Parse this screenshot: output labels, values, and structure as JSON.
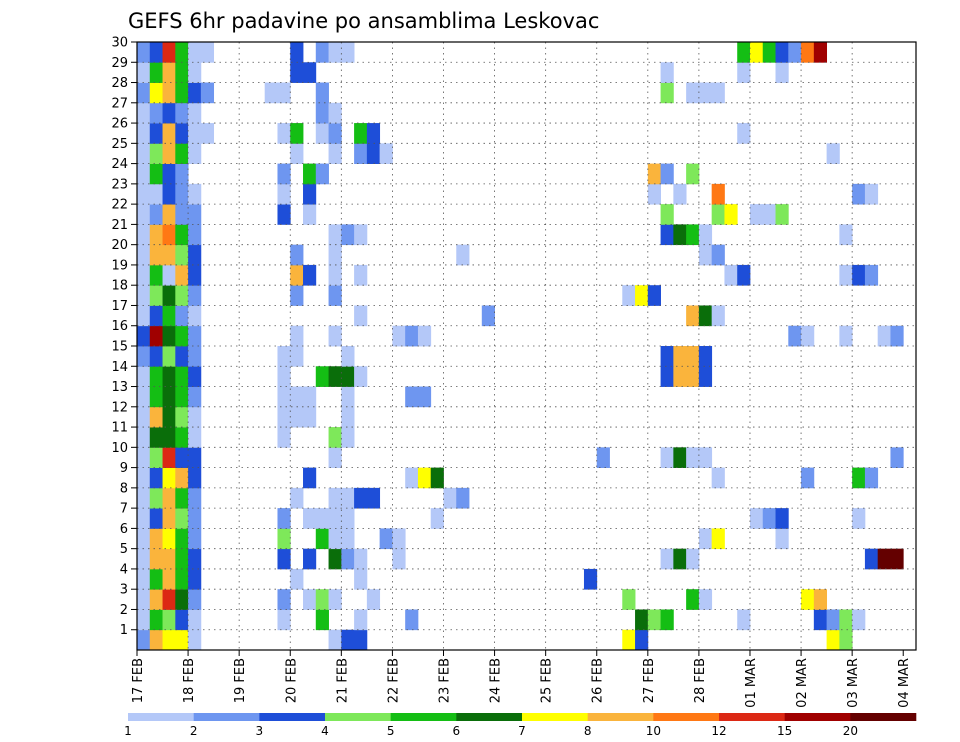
{
  "chart_data": {
    "type": "heatmap",
    "title": "GEFS 6hr padavine po ansamblima Leskovac",
    "xlabel": "",
    "ylabel": "",
    "x_tick_labels": [
      "17 FEB",
      "18 FEB",
      "19 FEB",
      "20 FEB",
      "21 FEB",
      "22 FEB",
      "23 FEB",
      "24 FEB",
      "25 FEB",
      "26 FEB",
      "27 FEB",
      "28 FEB",
      "01 MAR",
      "02 MAR",
      "03 MAR",
      "04 MAR"
    ],
    "y_tick_labels": [
      "1",
      "2",
      "3",
      "4",
      "5",
      "6",
      "7",
      "8",
      "9",
      "10",
      "11",
      "12",
      "13",
      "14",
      "15",
      "16",
      "17",
      "18",
      "19",
      "20",
      "21",
      "22",
      "23",
      "24",
      "25",
      "26",
      "27",
      "28",
      "29",
      "30"
    ],
    "x_step": "6hr",
    "n_columns": 61,
    "ylim": [
      0,
      30
    ],
    "grid": true,
    "colorbar": {
      "levels": [
        "1",
        "2",
        "3",
        "4",
        "5",
        "6",
        "7",
        "8",
        "10",
        "12",
        "15",
        "20"
      ],
      "colors": [
        "#b4c8f8",
        "#6e96f0",
        "#1e4ed8",
        "#7ee85a",
        "#14be14",
        "#0a6e0a",
        "#ffff00",
        "#fab43c",
        "#ff7814",
        "#dc2814",
        "#a00000",
        "#640000"
      ]
    },
    "cells": [
      [
        1,
        1,
        2
      ],
      [
        1,
        2,
        8
      ],
      [
        1,
        3,
        7
      ],
      [
        1,
        4,
        7
      ],
      [
        1,
        5,
        1
      ],
      [
        1,
        16,
        1
      ],
      [
        1,
        17,
        3
      ],
      [
        1,
        18,
        3
      ],
      [
        1,
        39,
        7
      ],
      [
        1,
        40,
        3
      ],
      [
        1,
        55,
        7
      ],
      [
        1,
        56,
        4
      ],
      [
        2,
        1,
        1
      ],
      [
        2,
        2,
        5
      ],
      [
        2,
        3,
        4
      ],
      [
        2,
        4,
        3
      ],
      [
        2,
        5,
        1
      ],
      [
        2,
        12,
        1
      ],
      [
        2,
        15,
        5
      ],
      [
        2,
        18,
        1
      ],
      [
        2,
        22,
        2
      ],
      [
        2,
        40,
        6
      ],
      [
        2,
        41,
        4
      ],
      [
        2,
        42,
        5
      ],
      [
        2,
        48,
        1
      ],
      [
        2,
        54,
        3
      ],
      [
        2,
        55,
        2
      ],
      [
        2,
        56,
        4
      ],
      [
        2,
        57,
        1
      ],
      [
        3,
        1,
        1
      ],
      [
        3,
        2,
        8
      ],
      [
        3,
        3,
        10
      ],
      [
        3,
        4,
        6
      ],
      [
        3,
        5,
        2
      ],
      [
        3,
        12,
        2
      ],
      [
        3,
        14,
        1
      ],
      [
        3,
        15,
        4
      ],
      [
        3,
        16,
        1
      ],
      [
        3,
        19,
        1
      ],
      [
        3,
        39,
        4
      ],
      [
        3,
        44,
        5
      ],
      [
        3,
        45,
        1
      ],
      [
        3,
        53,
        7
      ],
      [
        3,
        54,
        8
      ],
      [
        4,
        1,
        1
      ],
      [
        4,
        2,
        5
      ],
      [
        4,
        3,
        8
      ],
      [
        4,
        4,
        5
      ],
      [
        4,
        5,
        3
      ],
      [
        4,
        13,
        1
      ],
      [
        4,
        18,
        1
      ],
      [
        4,
        36,
        3
      ],
      [
        5,
        1,
        1
      ],
      [
        5,
        2,
        8
      ],
      [
        5,
        3,
        8
      ],
      [
        5,
        4,
        5
      ],
      [
        5,
        5,
        3
      ],
      [
        5,
        12,
        3
      ],
      [
        5,
        14,
        3
      ],
      [
        5,
        16,
        6
      ],
      [
        5,
        17,
        2
      ],
      [
        5,
        18,
        1
      ],
      [
        5,
        21,
        1
      ],
      [
        5,
        42,
        1
      ],
      [
        5,
        43,
        6
      ],
      [
        5,
        44,
        1
      ],
      [
        5,
        58,
        3
      ],
      [
        5,
        59,
        12
      ],
      [
        5,
        60,
        12
      ],
      [
        6,
        1,
        1
      ],
      [
        6,
        2,
        8
      ],
      [
        6,
        3,
        7
      ],
      [
        6,
        4,
        5
      ],
      [
        6,
        5,
        2
      ],
      [
        6,
        12,
        4
      ],
      [
        6,
        15,
        5
      ],
      [
        6,
        16,
        1
      ],
      [
        6,
        17,
        1
      ],
      [
        6,
        20,
        2
      ],
      [
        6,
        21,
        1
      ],
      [
        6,
        45,
        1
      ],
      [
        6,
        46,
        7
      ],
      [
        6,
        51,
        1
      ],
      [
        7,
        1,
        1
      ],
      [
        7,
        2,
        3
      ],
      [
        7,
        3,
        8
      ],
      [
        7,
        4,
        4
      ],
      [
        7,
        5,
        2
      ],
      [
        7,
        12,
        2
      ],
      [
        7,
        14,
        1
      ],
      [
        7,
        15,
        1
      ],
      [
        7,
        16,
        1
      ],
      [
        7,
        17,
        1
      ],
      [
        7,
        24,
        1
      ],
      [
        7,
        49,
        1
      ],
      [
        7,
        50,
        2
      ],
      [
        7,
        51,
        3
      ],
      [
        7,
        57,
        1
      ],
      [
        8,
        1,
        1
      ],
      [
        8,
        2,
        4
      ],
      [
        8,
        3,
        8
      ],
      [
        8,
        4,
        5
      ],
      [
        8,
        5,
        2
      ],
      [
        8,
        13,
        1
      ],
      [
        8,
        16,
        1
      ],
      [
        8,
        17,
        1
      ],
      [
        8,
        18,
        3
      ],
      [
        8,
        19,
        3
      ],
      [
        8,
        25,
        1
      ],
      [
        8,
        26,
        2
      ],
      [
        9,
        1,
        1
      ],
      [
        9,
        2,
        3
      ],
      [
        9,
        3,
        7
      ],
      [
        9,
        4,
        8
      ],
      [
        9,
        5,
        3
      ],
      [
        9,
        14,
        3
      ],
      [
        9,
        22,
        1
      ],
      [
        9,
        23,
        7
      ],
      [
        9,
        24,
        6
      ],
      [
        9,
        46,
        1
      ],
      [
        9,
        53,
        2
      ],
      [
        9,
        57,
        5
      ],
      [
        9,
        58,
        2
      ],
      [
        10,
        1,
        1
      ],
      [
        10,
        2,
        4
      ],
      [
        10,
        3,
        10
      ],
      [
        10,
        4,
        3
      ],
      [
        10,
        5,
        3
      ],
      [
        10,
        16,
        1
      ],
      [
        10,
        37,
        2
      ],
      [
        10,
        42,
        1
      ],
      [
        10,
        43,
        6
      ],
      [
        10,
        44,
        1
      ],
      [
        10,
        45,
        1
      ],
      [
        10,
        60,
        2
      ],
      [
        11,
        1,
        1
      ],
      [
        11,
        2,
        6
      ],
      [
        11,
        3,
        6
      ],
      [
        11,
        4,
        5
      ],
      [
        11,
        5,
        1
      ],
      [
        11,
        12,
        1
      ],
      [
        11,
        16,
        4
      ],
      [
        11,
        17,
        1
      ],
      [
        12,
        1,
        1
      ],
      [
        12,
        2,
        8
      ],
      [
        12,
        3,
        6
      ],
      [
        12,
        4,
        4
      ],
      [
        12,
        5,
        1
      ],
      [
        12,
        12,
        1
      ],
      [
        12,
        13,
        1
      ],
      [
        12,
        14,
        1
      ],
      [
        12,
        17,
        1
      ],
      [
        13,
        1,
        1
      ],
      [
        13,
        2,
        5
      ],
      [
        13,
        3,
        6
      ],
      [
        13,
        4,
        5
      ],
      [
        13,
        5,
        2
      ],
      [
        13,
        12,
        1
      ],
      [
        13,
        13,
        1
      ],
      [
        13,
        14,
        1
      ],
      [
        13,
        17,
        1
      ],
      [
        13,
        22,
        2
      ],
      [
        13,
        23,
        2
      ],
      [
        14,
        1,
        1
      ],
      [
        14,
        2,
        5
      ],
      [
        14,
        3,
        6
      ],
      [
        14,
        4,
        5
      ],
      [
        14,
        5,
        3
      ],
      [
        14,
        12,
        1
      ],
      [
        14,
        15,
        5
      ],
      [
        14,
        16,
        6
      ],
      [
        14,
        17,
        6
      ],
      [
        14,
        18,
        1
      ],
      [
        14,
        42,
        3
      ],
      [
        14,
        43,
        8
      ],
      [
        14,
        44,
        8
      ],
      [
        14,
        45,
        3
      ],
      [
        15,
        1,
        2
      ],
      [
        15,
        2,
        3
      ],
      [
        15,
        3,
        4
      ],
      [
        15,
        4,
        3
      ],
      [
        15,
        5,
        2
      ],
      [
        15,
        12,
        1
      ],
      [
        15,
        13,
        1
      ],
      [
        15,
        17,
        1
      ],
      [
        15,
        42,
        3
      ],
      [
        15,
        43,
        8
      ],
      [
        15,
        44,
        8
      ],
      [
        15,
        45,
        3
      ],
      [
        16,
        1,
        3
      ],
      [
        16,
        2,
        11
      ],
      [
        16,
        3,
        6
      ],
      [
        16,
        4,
        5
      ],
      [
        16,
        5,
        2
      ],
      [
        16,
        13,
        1
      ],
      [
        16,
        16,
        1
      ],
      [
        16,
        21,
        1
      ],
      [
        16,
        22,
        2
      ],
      [
        16,
        23,
        1
      ],
      [
        16,
        52,
        2
      ],
      [
        16,
        53,
        1
      ],
      [
        16,
        56,
        1
      ],
      [
        16,
        59,
        1
      ],
      [
        16,
        60,
        2
      ],
      [
        17,
        1,
        1
      ],
      [
        17,
        2,
        3
      ],
      [
        17,
        3,
        5
      ],
      [
        17,
        4,
        2
      ],
      [
        17,
        5,
        1
      ],
      [
        17,
        18,
        1
      ],
      [
        17,
        28,
        2
      ],
      [
        17,
        44,
        8
      ],
      [
        17,
        45,
        6
      ],
      [
        17,
        46,
        1
      ],
      [
        18,
        1,
        1
      ],
      [
        18,
        2,
        4
      ],
      [
        18,
        3,
        6
      ],
      [
        18,
        4,
        4
      ],
      [
        18,
        5,
        2
      ],
      [
        18,
        13,
        2
      ],
      [
        18,
        16,
        2
      ],
      [
        18,
        39,
        1
      ],
      [
        18,
        40,
        7
      ],
      [
        18,
        41,
        3
      ],
      [
        19,
        1,
        1
      ],
      [
        19,
        2,
        5
      ],
      [
        19,
        3,
        1
      ],
      [
        19,
        4,
        8
      ],
      [
        19,
        5,
        3
      ],
      [
        19,
        13,
        8
      ],
      [
        19,
        14,
        3
      ],
      [
        19,
        16,
        1
      ],
      [
        19,
        18,
        1
      ],
      [
        19,
        47,
        1
      ],
      [
        19,
        48,
        3
      ],
      [
        19,
        56,
        1
      ],
      [
        19,
        57,
        3
      ],
      [
        19,
        58,
        2
      ],
      [
        20,
        1,
        1
      ],
      [
        20,
        2,
        8
      ],
      [
        20,
        3,
        8
      ],
      [
        20,
        4,
        4
      ],
      [
        20,
        5,
        3
      ],
      [
        20,
        13,
        2
      ],
      [
        20,
        16,
        1
      ],
      [
        20,
        26,
        1
      ],
      [
        20,
        45,
        1
      ],
      [
        20,
        46,
        2
      ],
      [
        21,
        1,
        1
      ],
      [
        21,
        2,
        8
      ],
      [
        21,
        3,
        9
      ],
      [
        21,
        4,
        5
      ],
      [
        21,
        5,
        2
      ],
      [
        21,
        16,
        1
      ],
      [
        21,
        17,
        2
      ],
      [
        21,
        18,
        1
      ],
      [
        21,
        42,
        3
      ],
      [
        21,
        43,
        6
      ],
      [
        21,
        44,
        5
      ],
      [
        21,
        45,
        1
      ],
      [
        21,
        56,
        1
      ],
      [
        22,
        1,
        1
      ],
      [
        22,
        2,
        2
      ],
      [
        22,
        3,
        8
      ],
      [
        22,
        4,
        2
      ],
      [
        22,
        5,
        2
      ],
      [
        22,
        12,
        3
      ],
      [
        22,
        14,
        1
      ],
      [
        22,
        42,
        4
      ],
      [
        22,
        46,
        4
      ],
      [
        22,
        47,
        7
      ],
      [
        22,
        49,
        1
      ],
      [
        22,
        50,
        1
      ],
      [
        22,
        51,
        4
      ],
      [
        23,
        1,
        1
      ],
      [
        23,
        2,
        1
      ],
      [
        23,
        3,
        3
      ],
      [
        23,
        4,
        2
      ],
      [
        23,
        5,
        1
      ],
      [
        23,
        12,
        1
      ],
      [
        23,
        14,
        3
      ],
      [
        23,
        41,
        1
      ],
      [
        23,
        43,
        1
      ],
      [
        23,
        46,
        9
      ],
      [
        23,
        57,
        2
      ],
      [
        23,
        58,
        1
      ],
      [
        24,
        1,
        1
      ],
      [
        24,
        2,
        5
      ],
      [
        24,
        3,
        3
      ],
      [
        24,
        4,
        2
      ],
      [
        24,
        12,
        2
      ],
      [
        24,
        14,
        5
      ],
      [
        24,
        15,
        2
      ],
      [
        24,
        41,
        8
      ],
      [
        24,
        42,
        2
      ],
      [
        24,
        44,
        4
      ],
      [
        25,
        1,
        1
      ],
      [
        25,
        2,
        4
      ],
      [
        25,
        3,
        8
      ],
      [
        25,
        4,
        5
      ],
      [
        25,
        5,
        1
      ],
      [
        25,
        13,
        1
      ],
      [
        25,
        16,
        1
      ],
      [
        25,
        18,
        2
      ],
      [
        25,
        19,
        3
      ],
      [
        25,
        20,
        1
      ],
      [
        25,
        55,
        1
      ],
      [
        26,
        1,
        1
      ],
      [
        26,
        2,
        3
      ],
      [
        26,
        3,
        8
      ],
      [
        26,
        4,
        3
      ],
      [
        26,
        5,
        1
      ],
      [
        26,
        6,
        1
      ],
      [
        26,
        12,
        1
      ],
      [
        26,
        13,
        5
      ],
      [
        26,
        15,
        1
      ],
      [
        26,
        16,
        2
      ],
      [
        26,
        18,
        5
      ],
      [
        26,
        19,
        3
      ],
      [
        26,
        48,
        1
      ],
      [
        27,
        1,
        1
      ],
      [
        27,
        2,
        2
      ],
      [
        27,
        3,
        3
      ],
      [
        27,
        4,
        2
      ],
      [
        27,
        5,
        1
      ],
      [
        27,
        15,
        2
      ],
      [
        27,
        16,
        1
      ],
      [
        28,
        1,
        2
      ],
      [
        28,
        2,
        7
      ],
      [
        28,
        3,
        8
      ],
      [
        28,
        4,
        5
      ],
      [
        28,
        5,
        3
      ],
      [
        28,
        6,
        2
      ],
      [
        28,
        11,
        1
      ],
      [
        28,
        12,
        1
      ],
      [
        28,
        15,
        2
      ],
      [
        28,
        42,
        4
      ],
      [
        28,
        44,
        1
      ],
      [
        28,
        45,
        1
      ],
      [
        28,
        46,
        1
      ],
      [
        29,
        1,
        1
      ],
      [
        29,
        2,
        5
      ],
      [
        29,
        3,
        8
      ],
      [
        29,
        4,
        5
      ],
      [
        29,
        5,
        1
      ],
      [
        29,
        13,
        3
      ],
      [
        29,
        14,
        3
      ],
      [
        29,
        42,
        1
      ],
      [
        29,
        48,
        1
      ],
      [
        29,
        51,
        1
      ],
      [
        30,
        1,
        2
      ],
      [
        30,
        2,
        3
      ],
      [
        30,
        3,
        10
      ],
      [
        30,
        4,
        5
      ],
      [
        30,
        5,
        1
      ],
      [
        30,
        6,
        1
      ],
      [
        30,
        13,
        3
      ],
      [
        30,
        15,
        2
      ],
      [
        30,
        16,
        1
      ],
      [
        30,
        17,
        1
      ],
      [
        30,
        48,
        5
      ],
      [
        30,
        49,
        7
      ],
      [
        30,
        50,
        5
      ],
      [
        30,
        51,
        3
      ],
      [
        30,
        52,
        2
      ],
      [
        30,
        53,
        9
      ],
      [
        30,
        54,
        11
      ]
    ]
  }
}
